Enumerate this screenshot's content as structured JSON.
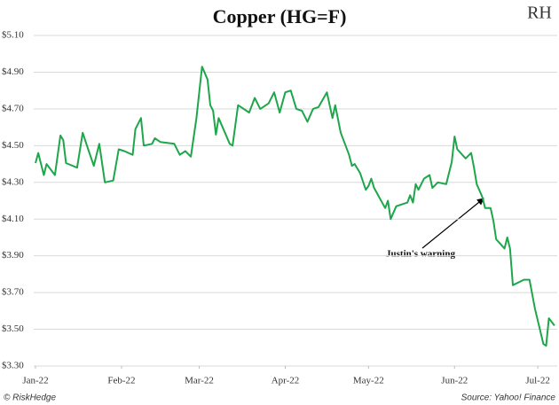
{
  "chart_data": {
    "type": "line",
    "title": "Copper (HG=F)",
    "logo": "RH",
    "source": "Source: Yahoo! Finance",
    "credit": "© RiskHedge",
    "annotation": "Justin's warning",
    "x": [
      0,
      1,
      3,
      4,
      7,
      9,
      10,
      11,
      15,
      17,
      19,
      21,
      23,
      25,
      28,
      30,
      32,
      35,
      36,
      38,
      39,
      42,
      43,
      45,
      50,
      52,
      54,
      56,
      58,
      60,
      62,
      63,
      64,
      65,
      66,
      68,
      70,
      71,
      73,
      77,
      79,
      81,
      84,
      86,
      88,
      90,
      92,
      94,
      96,
      98,
      100,
      102,
      105,
      107,
      108,
      110,
      113,
      114,
      115,
      117,
      119,
      120,
      121,
      122,
      126,
      127,
      128,
      130,
      134,
      135,
      136,
      137,
      138,
      140,
      142,
      143,
      145,
      148,
      150,
      151,
      152,
      155,
      157,
      158,
      159,
      161,
      162,
      164,
      165,
      166,
      169,
      170,
      171,
      172,
      176,
      178,
      180,
      183,
      184,
      185,
      187
    ],
    "series": [
      {
        "name": "Copper",
        "color": "#1ea64b",
        "values": [
          4.405,
          4.46,
          4.34,
          4.4,
          4.34,
          4.555,
          4.53,
          4.405,
          4.38,
          4.57,
          4.48,
          4.39,
          4.51,
          4.3,
          4.31,
          4.48,
          4.47,
          4.45,
          4.59,
          4.65,
          4.5,
          4.51,
          4.54,
          4.52,
          4.51,
          4.45,
          4.47,
          4.44,
          4.65,
          4.93,
          4.86,
          4.72,
          4.69,
          4.56,
          4.65,
          4.58,
          4.51,
          4.5,
          4.72,
          4.68,
          4.76,
          4.7,
          4.73,
          4.79,
          4.68,
          4.79,
          4.8,
          4.7,
          4.69,
          4.63,
          4.7,
          4.71,
          4.79,
          4.65,
          4.72,
          4.57,
          4.45,
          4.39,
          4.4,
          4.35,
          4.26,
          4.28,
          4.32,
          4.27,
          4.16,
          4.2,
          4.1,
          4.17,
          4.19,
          4.23,
          4.19,
          4.29,
          4.26,
          4.32,
          4.34,
          4.27,
          4.3,
          4.29,
          4.41,
          4.55,
          4.48,
          4.43,
          4.46,
          4.38,
          4.29,
          4.22,
          4.16,
          4.16,
          4.09,
          3.99,
          3.94,
          4.0,
          3.94,
          3.74,
          3.77,
          3.77,
          3.61,
          3.42,
          3.41,
          3.56,
          3.52
        ]
      }
    ],
    "xlim": [
      0,
      188
    ],
    "xticks": [
      {
        "value": 0,
        "label": "Jan-22"
      },
      {
        "value": 31,
        "label": "Feb-22"
      },
      {
        "value": 59,
        "label": "Mar-22"
      },
      {
        "value": 90,
        "label": "Apr-22"
      },
      {
        "value": 120,
        "label": "May-22"
      },
      {
        "value": 151,
        "label": "Jun-22"
      },
      {
        "value": 181,
        "label": "Jul-22"
      }
    ],
    "ylim": [
      3.3,
      5.1
    ],
    "yticks": [
      {
        "value": 5.1,
        "label": "$5.10"
      },
      {
        "value": 4.9,
        "label": "$4.90"
      },
      {
        "value": 4.7,
        "label": "$4.70"
      },
      {
        "value": 4.5,
        "label": "$4.50"
      },
      {
        "value": 4.3,
        "label": "$4.30"
      },
      {
        "value": 4.1,
        "label": "$4.10"
      },
      {
        "value": 3.9,
        "label": "$3.90"
      },
      {
        "value": 3.7,
        "label": "$3.70"
      },
      {
        "value": 3.5,
        "label": "$3.50"
      },
      {
        "value": 3.3,
        "label": "$3.30"
      }
    ],
    "grid": true
  }
}
